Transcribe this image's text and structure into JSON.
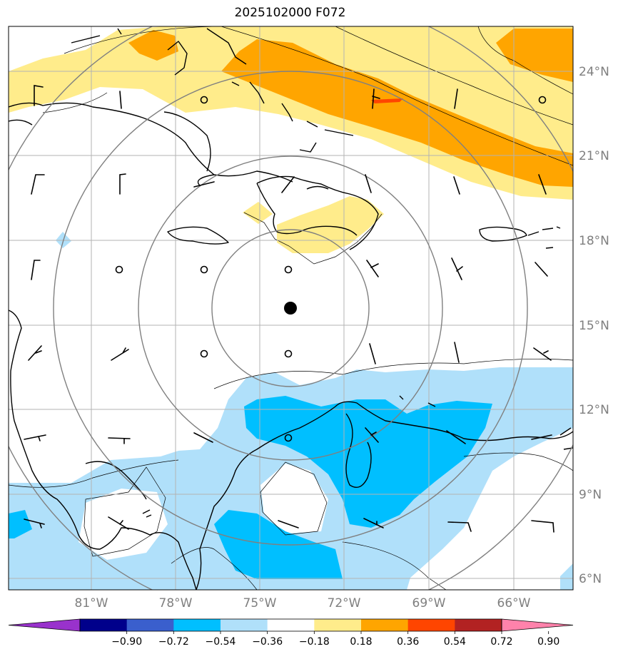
{
  "title": "2025102000 F072",
  "lat_labels": [
    "24°N",
    "21°N",
    "18°N",
    "15°N",
    "12°N",
    "9°N",
    "6°N"
  ],
  "lon_labels": [
    "81°W",
    "78°W",
    "75°W",
    "72°W",
    "69°W",
    "66°W"
  ],
  "colorbar": {
    "ticks": [
      "−0.90",
      "−0.72",
      "−0.54",
      "−0.36",
      "−0.18",
      "0.18",
      "0.36",
      "0.54",
      "0.72",
      "0.90"
    ],
    "colors": [
      "#9932cc",
      "#00008b",
      "#3a5fcd",
      "#00bfff",
      "#b0e0fa",
      "#ffffff",
      "#ffec8b",
      "#ffa500",
      "#ff4500",
      "#b22222",
      "#ff82ab"
    ]
  },
  "colors": {
    "frame": "#000000",
    "grid": "#b3b3b3",
    "range_ring": "#808080",
    "coast": "#000000",
    "center_marker": "#000000"
  }
}
